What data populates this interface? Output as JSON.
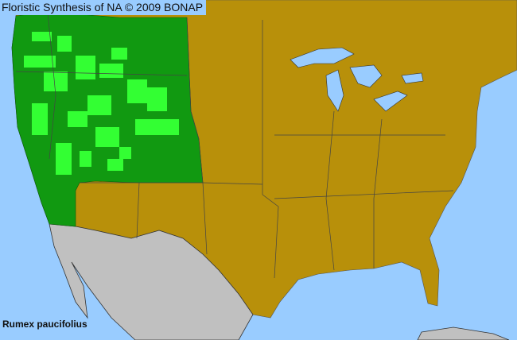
{
  "header": {
    "title": "Floristic Synthesis of NA © 2009 BONAP"
  },
  "species": "Rumex paucifolius",
  "legend_colors": {
    "ocean": "#99ccff",
    "absent_region": "#b8900a",
    "present_state": "#119911",
    "present_county": "#33ff33",
    "outside_range": "#c0c0c0",
    "borders": "#555555"
  }
}
